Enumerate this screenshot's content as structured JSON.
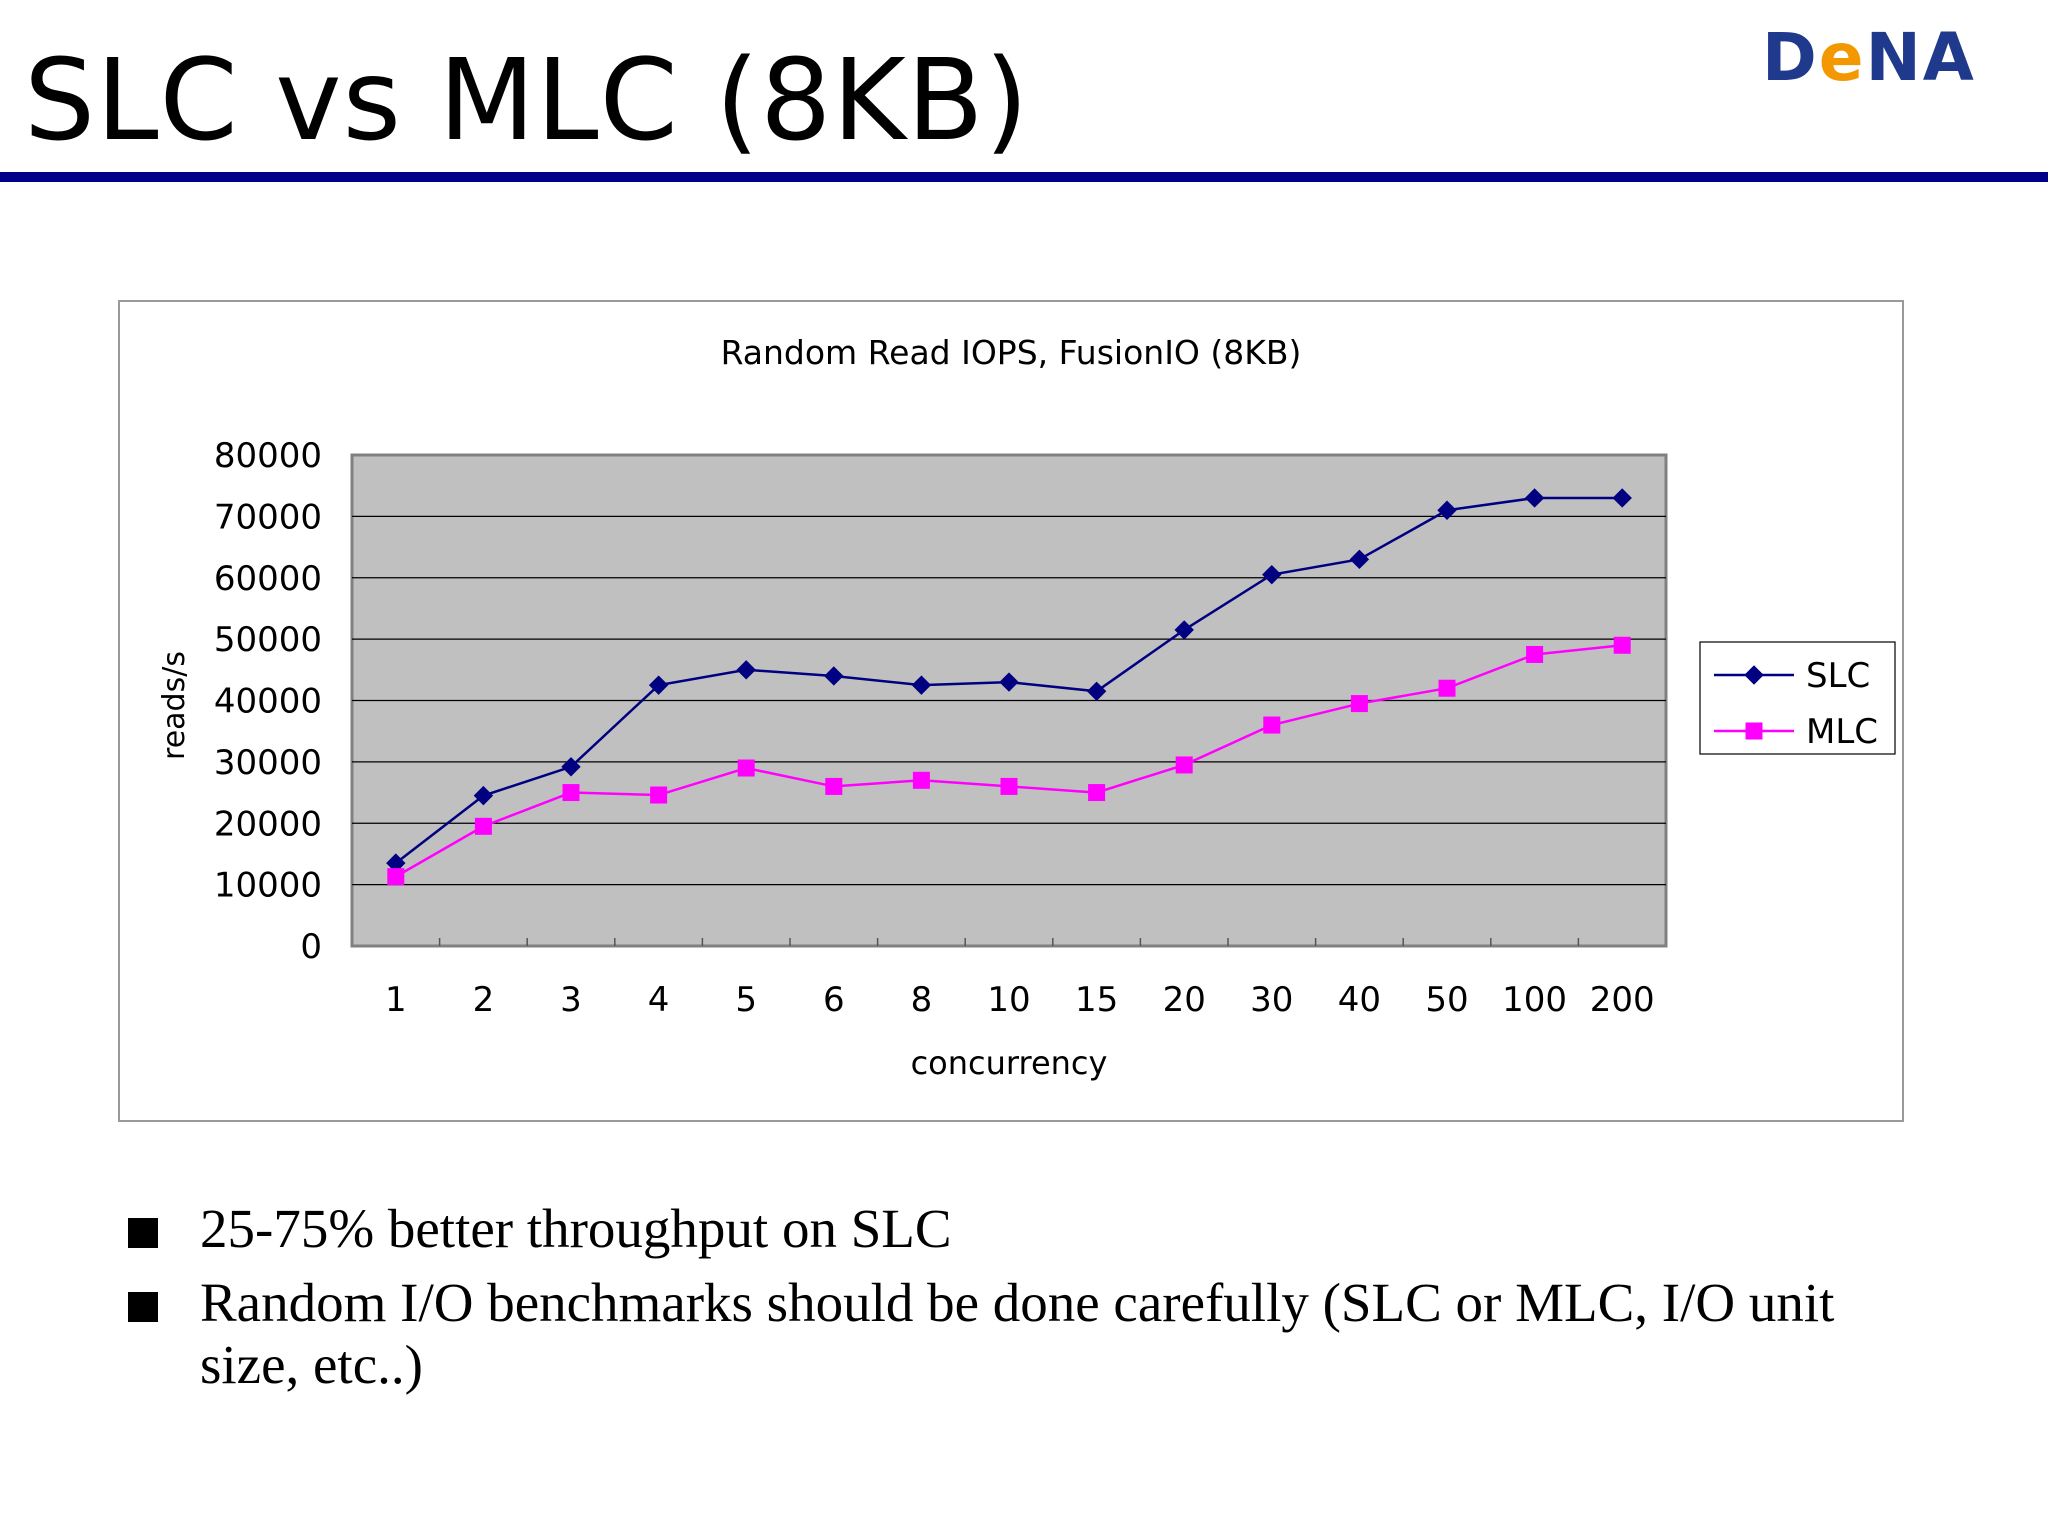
{
  "slide": {
    "title": "SLC vs MLC (8KB)",
    "logo": {
      "prefix": "D",
      "accent": "e",
      "suffix": "NA"
    }
  },
  "colors": {
    "rule": "#000088",
    "plot_bg": "#c0c0c0",
    "logo_blue": "#1f3a8c",
    "logo_orange": "#f39800"
  },
  "chart_data": {
    "type": "line",
    "title": "Random Read IOPS, FusionIO (8KB)",
    "xlabel": "concurrency",
    "ylabel": "reads/s",
    "categories": [
      "1",
      "2",
      "3",
      "4",
      "5",
      "6",
      "8",
      "10",
      "15",
      "20",
      "30",
      "40",
      "50",
      "100",
      "200"
    ],
    "ylim": [
      0,
      80000
    ],
    "yticks": [
      0,
      10000,
      20000,
      30000,
      40000,
      50000,
      60000,
      70000,
      80000
    ],
    "grid": true,
    "legend_position": "right",
    "series": [
      {
        "name": "SLC",
        "color": "#000080",
        "marker": "diamond",
        "values": [
          13500,
          24500,
          29200,
          42500,
          45000,
          44000,
          42500,
          43000,
          41500,
          51500,
          60500,
          63000,
          71000,
          73000,
          73000
        ]
      },
      {
        "name": "MLC",
        "color": "#ff00ff",
        "marker": "square",
        "values": [
          11300,
          19500,
          25000,
          24600,
          29000,
          26000,
          27000,
          26000,
          25000,
          29500,
          36000,
          39500,
          42000,
          47500,
          49000
        ]
      }
    ]
  },
  "bullets": [
    {
      "text": "25-75% better throughput on SLC"
    },
    {
      "text": "Random I/O benchmarks should be done carefully (SLC or MLC, I/O unit size, etc..)"
    }
  ]
}
